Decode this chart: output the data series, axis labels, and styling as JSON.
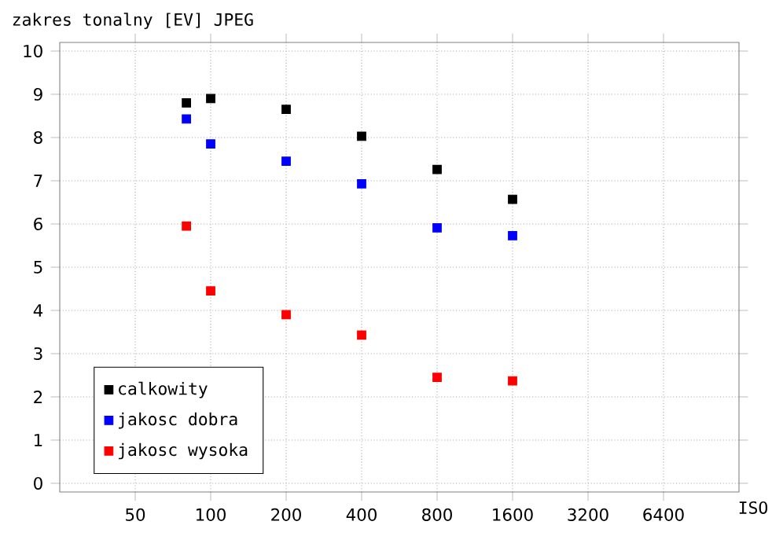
{
  "chart_data": {
    "type": "scatter",
    "title": "zakres tonalny [EV] JPEG",
    "xlabel": "ISO",
    "log": "x",
    "xlim": [
      25,
      12800
    ],
    "xticks": [
      50,
      100,
      200,
      400,
      800,
      1600,
      3200,
      6400
    ],
    "ylim": [
      -0.2,
      10.2
    ],
    "yticks": [
      0,
      1,
      2,
      3,
      4,
      5,
      6,
      7,
      8,
      9,
      10
    ],
    "grid": true,
    "legend": "bottom left",
    "marker": "square",
    "x": [
      80,
      100,
      200,
      400,
      800,
      1600
    ],
    "series": [
      {
        "name": "calkowity",
        "color": "#000000",
        "values": [
          8.8,
          8.9,
          8.65,
          8.03,
          7.26,
          6.57
        ]
      },
      {
        "name": "jakosc dobra",
        "color": "#0000ff",
        "values": [
          8.43,
          7.85,
          7.45,
          6.93,
          5.91,
          5.73
        ]
      },
      {
        "name": "jakosc wysoka",
        "color": "#ff0000",
        "values": [
          5.95,
          4.45,
          3.9,
          3.43,
          2.45,
          2.37
        ]
      }
    ]
  }
}
